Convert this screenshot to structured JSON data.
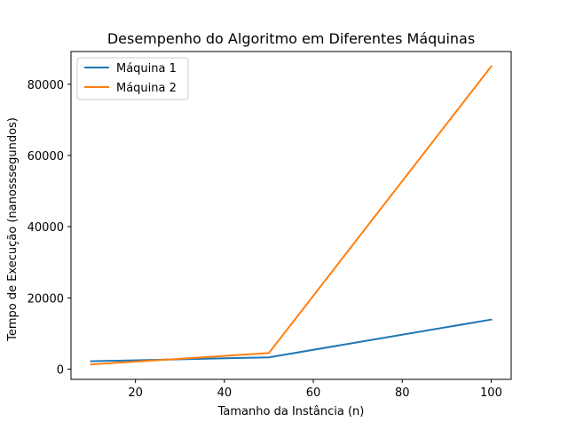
{
  "chart_data": {
    "type": "line",
    "title": "Desempenho do Algoritmo em Diferentes Máquinas",
    "xlabel": "Tamanho da Instância (n)",
    "ylabel": "Tempo de Execução (nanosssegundos)",
    "x": [
      10,
      50,
      100
    ],
    "series": [
      {
        "name": "Máquina 1",
        "color": "#1f77b4",
        "values": [
          2200,
          3300,
          13900
        ]
      },
      {
        "name": "Máquina 2",
        "color": "#ff7f0e",
        "values": [
          1300,
          4500,
          85000
        ]
      }
    ],
    "xlim": [
      5.5,
      104.5
    ],
    "ylim": [
      -2885,
      89185
    ],
    "xticks": [
      20,
      40,
      60,
      80,
      100
    ],
    "yticks": [
      0,
      20000,
      40000,
      60000,
      80000
    ],
    "grid": false,
    "legend_position": "top-left"
  }
}
